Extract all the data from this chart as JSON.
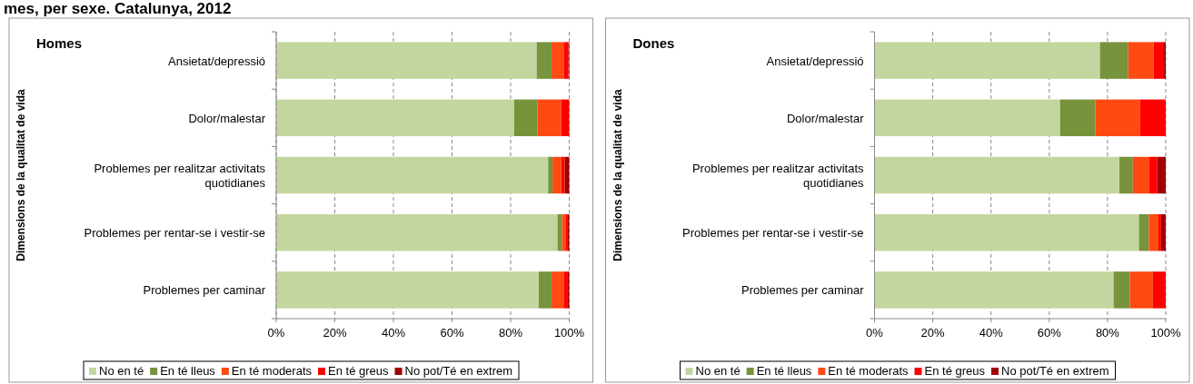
{
  "chart_data": [
    {
      "type": "bar",
      "orientation": "horizontal",
      "stacked": true,
      "title": "mes, per sexe. Catalunya, 2012",
      "subtitle": "Homes",
      "ylabel": "Dimensions de la qualitat de vida",
      "categories": [
        "Ansietat/depressió",
        "Dolor/malestar",
        "Problemes per realitzar  activitats quotidianes",
        "Problemes per rentar-se  i vestir-se",
        "Problemes per caminar"
      ],
      "series": [
        {
          "name": "No en té",
          "color": "#c4d69f",
          "values": [
            88.9,
            81.2,
            92.8,
            96.0,
            89.6
          ]
        },
        {
          "name": "En té lleus",
          "color": "#77933c",
          "values": [
            5.1,
            8.0,
            1.5,
            1.5,
            4.4
          ]
        },
        {
          "name": "En té moderats",
          "color": "#ff4a12",
          "values": [
            4.1,
            8.0,
            3.0,
            1.4,
            4.1
          ]
        },
        {
          "name": "En té greus",
          "color": "#ff0000",
          "values": [
            1.6,
            2.8,
            1.2,
            0.6,
            1.4
          ]
        },
        {
          "name": "No pot/Té en extrem",
          "color": "#a00000",
          "values": [
            0.3,
            0,
            1.5,
            0.5,
            0.5
          ]
        }
      ],
      "xlim": [
        0,
        100
      ],
      "xticks": [
        {
          "value": 0,
          "label": "0%"
        },
        {
          "value": 20,
          "label": "20%"
        },
        {
          "value": 40,
          "label": "40%"
        },
        {
          "value": 60,
          "label": "60%"
        },
        {
          "value": 80,
          "label": "80%"
        },
        {
          "value": 100,
          "label": "100%"
        }
      ],
      "grid": "x",
      "legend": "bottom"
    },
    {
      "type": "bar",
      "orientation": "horizontal",
      "stacked": true,
      "subtitle": "Dones",
      "ylabel": "Dimensions de la qualitat de vida",
      "categories": [
        "Ansietat/depressió",
        "Dolor/malestar",
        "Problemes per realitzar  activitats quotidianes",
        "Problemes per rentar-se  i vestir-se",
        "Problemes per caminar"
      ],
      "series": [
        {
          "name": "No en té",
          "color": "#c4d69f",
          "values": [
            77.4,
            63.7,
            84.1,
            90.8,
            82.1
          ]
        },
        {
          "name": "En té lleus",
          "color": "#77933c",
          "values": [
            9.7,
            12.1,
            4.6,
            3.4,
            5.6
          ]
        },
        {
          "name": "En té moderats",
          "color": "#ff4a12",
          "values": [
            8.8,
            15.4,
            5.7,
            3.3,
            7.9
          ]
        },
        {
          "name": "En té greus",
          "color": "#ff0000",
          "values": [
            3.5,
            8.8,
            2.7,
            0.9,
            4.4
          ]
        },
        {
          "name": "No pot/Té en extrem",
          "color": "#a00000",
          "values": [
            0.6,
            0,
            2.9,
            1.6,
            0
          ]
        }
      ],
      "xlim": [
        0,
        100
      ],
      "xticks": [
        {
          "value": 0,
          "label": "0%"
        },
        {
          "value": 20,
          "label": "20%"
        },
        {
          "value": 40,
          "label": "40%"
        },
        {
          "value": 60,
          "label": "60%"
        },
        {
          "value": 80,
          "label": "80%"
        },
        {
          "value": 100,
          "label": "100%"
        }
      ],
      "grid": "x",
      "legend": "bottom"
    }
  ]
}
